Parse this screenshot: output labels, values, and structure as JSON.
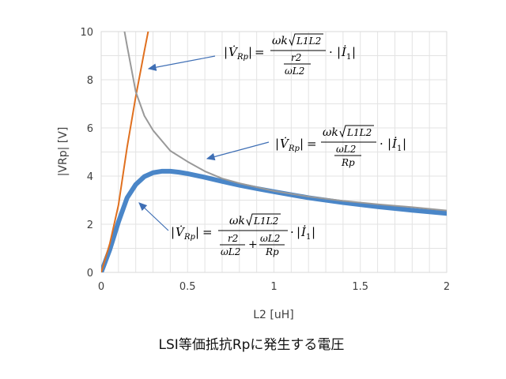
{
  "chart_data": {
    "type": "line",
    "caption": "LSI等価抵抗Rpに発生する電圧",
    "xlabel": "L2 [uH]",
    "ylabel": "|VRp| [V]",
    "xlim": [
      0,
      2
    ],
    "ylim": [
      0,
      10
    ],
    "x_ticks": [
      0,
      0.5,
      1,
      1.5,
      2
    ],
    "x_tick_labels": [
      "0",
      "0.5",
      "1",
      "1.5",
      "2"
    ],
    "y_ticks": [
      0,
      2,
      4,
      6,
      8,
      10
    ],
    "y_tick_labels": [
      "0",
      "2",
      "4",
      "6",
      "8",
      "10"
    ],
    "grid": true,
    "series": [
      {
        "color": "#4a86c8",
        "x": [
          0,
          0.05,
          0.1,
          0.15,
          0.2,
          0.25,
          0.3,
          0.35,
          0.4,
          0.45,
          0.5,
          0.6,
          0.7,
          0.8,
          0.9,
          1.0,
          1.2,
          1.4,
          1.6,
          1.8,
          2.0
        ],
        "y": [
          0,
          0.95,
          2.1,
          3.1,
          3.65,
          3.98,
          4.14,
          4.2,
          4.2,
          4.16,
          4.1,
          3.95,
          3.78,
          3.62,
          3.48,
          3.35,
          3.1,
          2.9,
          2.73,
          2.58,
          2.45
        ]
      },
      {
        "color": "#e0701f",
        "x": [
          0,
          0.05,
          0.1,
          0.15,
          0.2,
          0.25,
          0.28
        ],
        "y": [
          0,
          1.2,
          2.8,
          5.2,
          7.3,
          9.2,
          10.3
        ]
      },
      {
        "color": "#999999",
        "x": [
          0.13,
          0.15,
          0.2,
          0.25,
          0.3,
          0.4,
          0.5,
          0.6,
          0.7,
          0.8,
          1.0,
          1.2,
          1.4,
          1.6,
          1.8,
          2.0
        ],
        "y": [
          10.2,
          9.4,
          7.5,
          6.5,
          5.9,
          5.05,
          4.6,
          4.2,
          3.9,
          3.7,
          3.38,
          3.15,
          2.97,
          2.83,
          2.71,
          2.57
        ]
      }
    ],
    "annotations": [
      {
        "formula": "|V̇Rp| = (ωk√(L1L2) / (r2/(ωL2))) · |İ1|",
        "text": {
          "bar": "|",
          "V": "V̇",
          "Rp": "Rp",
          "eq": "=",
          "omega_k": "ωk",
          "L1L2": "L1L2",
          "r2": "r2",
          "omegaL2": "ωL2",
          "dot": "·",
          "I": "İ",
          "one": "1"
        }
      },
      {
        "formula": "|V̇Rp| = (ωk√(L1L2) / (ωL2/Rp)) · |İ1|",
        "text": {
          "bar": "|",
          "V": "V̇",
          "Rp": "Rp",
          "eq": "=",
          "omega_k": "ωk",
          "L1L2": "L1L2",
          "omegaL2": "ωL2",
          "Rp_den": "Rp",
          "dot": "·",
          "I": "İ",
          "one": "1"
        }
      },
      {
        "formula": "|V̇Rp| = (ωk√(L1L2) / (r2/(ωL2) + ωL2/Rp)) · |İ1|",
        "text": {
          "bar": "|",
          "V": "V̇",
          "Rp": "Rp",
          "eq": "=",
          "omega_k": "ωk",
          "L1L2": "L1L2",
          "r2": "r2",
          "omegaL2": "ωL2",
          "plus": "+",
          "omegaL2b": "ωL2",
          "Rp_den": "Rp",
          "dot": "·",
          "I": "İ",
          "one": "1"
        }
      }
    ]
  }
}
